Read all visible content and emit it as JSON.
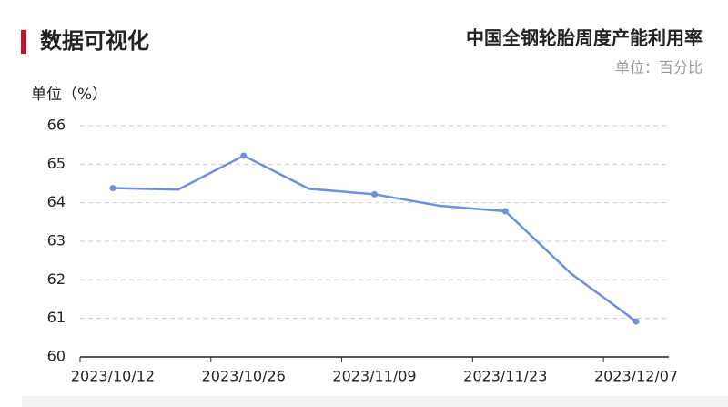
{
  "header": {
    "title": "数据可视化"
  },
  "chart_data": {
    "type": "line",
    "title": "中国全钢轮胎周度产能利用率",
    "subtitle": "单位：百分比",
    "y_label": "单位（%）",
    "categories": [
      "2023/10/12",
      null,
      "2023/10/26",
      null,
      "2023/11/09",
      null,
      "2023/11/23",
      null,
      "2023/12/07"
    ],
    "series": [
      {
        "name": "产能利用率",
        "color": "#6f8fe0",
        "values": [
          64.38,
          64.34,
          65.22,
          64.36,
          64.22,
          63.92,
          63.78,
          62.17,
          60.92
        ]
      }
    ],
    "ylim": [
      60,
      66
    ],
    "yticks": [
      60,
      61,
      62,
      63,
      64,
      65,
      66
    ],
    "grid": true
  }
}
